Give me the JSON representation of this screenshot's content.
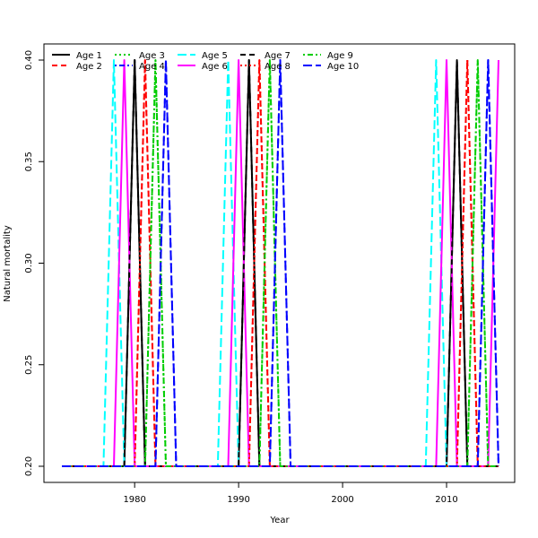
{
  "chart_data": {
    "type": "line",
    "title": "",
    "xlabel": "Year",
    "ylabel": "Natural mortality",
    "xlim": [
      1973,
      2015
    ],
    "ylim": [
      0.2,
      0.4
    ],
    "xticks": [
      1980,
      1990,
      2000,
      2010
    ],
    "yticks": [
      0.2,
      0.25,
      0.3,
      0.35,
      0.4
    ],
    "ytick_labels": [
      "0.20",
      "0.25",
      "0.30",
      "0.35",
      "0.40"
    ],
    "legend_position": "top-left",
    "grid": false,
    "series": [
      {
        "name": "Age 1",
        "color": "#000000",
        "dash": "solid",
        "points": [
          [
            1973,
            0.2
          ],
          [
            1979,
            0.2
          ],
          [
            1980,
            0.4
          ],
          [
            1981,
            0.2
          ],
          [
            1990,
            0.2
          ],
          [
            1991,
            0.4
          ],
          [
            1992,
            0.2
          ],
          [
            2010,
            0.2
          ],
          [
            2011,
            0.4
          ],
          [
            2012,
            0.2
          ],
          [
            2015,
            0.2
          ]
        ]
      },
      {
        "name": "Age 2",
        "color": "#ff0000",
        "dash": "dashed",
        "points": [
          [
            1973,
            0.2
          ],
          [
            1980,
            0.2
          ],
          [
            1981,
            0.4
          ],
          [
            1982,
            0.2
          ],
          [
            1991,
            0.2
          ],
          [
            1992,
            0.4
          ],
          [
            1993,
            0.2
          ],
          [
            2011,
            0.2
          ],
          [
            2012,
            0.4
          ],
          [
            2013,
            0.2
          ],
          [
            2015,
            0.2
          ]
        ]
      },
      {
        "name": "Age 3",
        "color": "#00cd00",
        "dash": "dotted",
        "points": [
          [
            1973,
            0.2
          ],
          [
            1981,
            0.2
          ],
          [
            1982,
            0.4
          ],
          [
            1983,
            0.2
          ],
          [
            1992,
            0.2
          ],
          [
            1993,
            0.4
          ],
          [
            1994,
            0.2
          ],
          [
            2012,
            0.2
          ],
          [
            2013,
            0.4
          ],
          [
            2014,
            0.2
          ],
          [
            2015,
            0.2
          ]
        ]
      },
      {
        "name": "Age 4",
        "color": "#0000ff",
        "dash": "dotdash",
        "points": [
          [
            1973,
            0.2
          ],
          [
            1982,
            0.2
          ],
          [
            1983,
            0.4
          ],
          [
            1984,
            0.2
          ],
          [
            1993,
            0.2
          ],
          [
            1994,
            0.4
          ],
          [
            1995,
            0.2
          ],
          [
            2013,
            0.2
          ],
          [
            2014,
            0.4
          ],
          [
            2015,
            0.2
          ]
        ]
      },
      {
        "name": "Age 5",
        "color": "#00ffff",
        "dash": "longdash",
        "points": [
          [
            1973,
            0.2
          ],
          [
            1977,
            0.2
          ],
          [
            1978,
            0.4
          ],
          [
            1979,
            0.2
          ],
          [
            1988,
            0.2
          ],
          [
            1989,
            0.4
          ],
          [
            1990,
            0.2
          ],
          [
            2008,
            0.2
          ],
          [
            2009,
            0.4
          ],
          [
            2010,
            0.2
          ],
          [
            2015,
            0.2
          ]
        ]
      },
      {
        "name": "Age 6",
        "color": "#ff00ff",
        "dash": "solid",
        "points": [
          [
            1973,
            0.2
          ],
          [
            1978,
            0.2
          ],
          [
            1979,
            0.4
          ],
          [
            1980,
            0.2
          ],
          [
            1989,
            0.2
          ],
          [
            1990,
            0.4
          ],
          [
            1991,
            0.2
          ],
          [
            2009,
            0.2
          ],
          [
            2010,
            0.4
          ],
          [
            2011,
            0.2
          ],
          [
            2014,
            0.2
          ],
          [
            2015,
            0.4
          ]
        ]
      },
      {
        "name": "Age 7",
        "color": "#000000",
        "dash": "dashed",
        "points": [
          [
            1973,
            0.2
          ],
          [
            1979,
            0.2
          ],
          [
            1980,
            0.4
          ],
          [
            1981,
            0.2
          ],
          [
            1990,
            0.2
          ],
          [
            1991,
            0.4
          ],
          [
            1992,
            0.2
          ],
          [
            2010,
            0.2
          ],
          [
            2011,
            0.4
          ],
          [
            2012,
            0.2
          ],
          [
            2015,
            0.2
          ]
        ]
      },
      {
        "name": "Age 8",
        "color": "#ff0000",
        "dash": "dotted",
        "points": [
          [
            1973,
            0.2
          ],
          [
            1980,
            0.2
          ],
          [
            1981,
            0.4
          ],
          [
            1982,
            0.2
          ],
          [
            1991,
            0.2
          ],
          [
            1992,
            0.4
          ],
          [
            1993,
            0.2
          ],
          [
            2011,
            0.2
          ],
          [
            2012,
            0.4
          ],
          [
            2013,
            0.2
          ],
          [
            2015,
            0.2
          ]
        ]
      },
      {
        "name": "Age 9",
        "color": "#00cd00",
        "dash": "dotdash",
        "points": [
          [
            1973,
            0.2
          ],
          [
            1981,
            0.2
          ],
          [
            1982,
            0.4
          ],
          [
            1983,
            0.2
          ],
          [
            1992,
            0.2
          ],
          [
            1993,
            0.4
          ],
          [
            1994,
            0.2
          ],
          [
            2012,
            0.2
          ],
          [
            2013,
            0.4
          ],
          [
            2014,
            0.2
          ],
          [
            2015,
            0.2
          ]
        ]
      },
      {
        "name": "Age 10",
        "color": "#0000ff",
        "dash": "longdash",
        "points": [
          [
            1973,
            0.2
          ],
          [
            1982,
            0.2
          ],
          [
            1983,
            0.4
          ],
          [
            1984,
            0.2
          ],
          [
            1993,
            0.2
          ],
          [
            1994,
            0.4
          ],
          [
            1995,
            0.2
          ],
          [
            2013,
            0.2
          ],
          [
            2014,
            0.4
          ],
          [
            2015,
            0.2
          ]
        ]
      }
    ]
  }
}
